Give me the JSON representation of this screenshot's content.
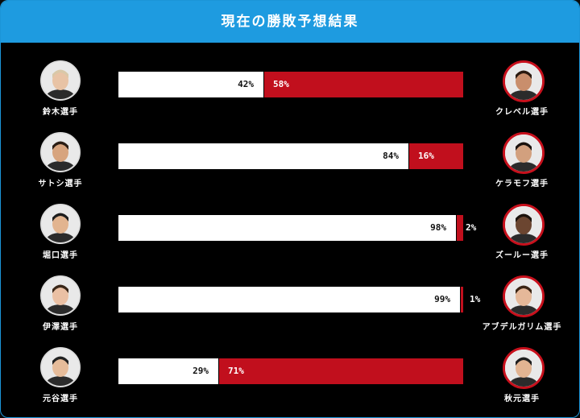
{
  "header": {
    "title": "現在の勝敗予想結果"
  },
  "colors": {
    "accent": "#1e9be0",
    "win_left": "#ffffff",
    "win_right": "#c10f1d"
  },
  "matches": [
    {
      "left_name": "鈴木選手",
      "right_name": "クレベル選手",
      "left_pct": 42,
      "right_pct": 58,
      "left_label": "42%",
      "right_label": "58%"
    },
    {
      "left_name": "サトシ選手",
      "right_name": "ケラモフ選手",
      "left_pct": 84,
      "right_pct": 16,
      "left_label": "84%",
      "right_label": "16%"
    },
    {
      "left_name": "堀口選手",
      "right_name": "ズールー選手",
      "left_pct": 98,
      "right_pct": 2,
      "left_label": "98%",
      "right_label": "2%"
    },
    {
      "left_name": "伊澤選手",
      "right_name": "アブデルガリム選手",
      "left_pct": 99,
      "right_pct": 1,
      "left_label": "99%",
      "right_label": "1%"
    },
    {
      "left_name": "元谷選手",
      "right_name": "秋元選手",
      "left_pct": 29,
      "right_pct": 71,
      "left_label": "29%",
      "right_label": "71%"
    }
  ]
}
